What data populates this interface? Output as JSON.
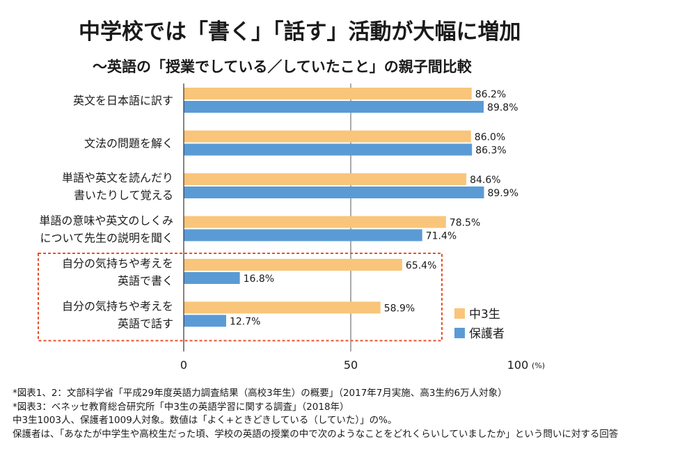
{
  "title": "中学校では「書く」「話す」活動が大幅に増加",
  "subtitle": "～英語の「授業でしている／していたこと」の親子間比較",
  "chart_data": {
    "type": "bar",
    "orientation": "horizontal",
    "categories": [
      [
        "英文を日本語に訳す"
      ],
      [
        "文法の問題を解く"
      ],
      [
        "単語や英文を読んだり",
        "書いたりして覚える"
      ],
      [
        "単語の意味や英文のしくみ",
        "について先生の説明を聞く"
      ],
      [
        "自分の気持ちや考えを",
        "英語で書く"
      ],
      [
        "自分の気持ちや考えを",
        "英語で話す"
      ]
    ],
    "series": [
      {
        "name": "中3生",
        "color": "#F9C57A",
        "values": [
          86.2,
          86.0,
          84.6,
          78.5,
          65.4,
          58.9
        ],
        "labels": [
          "86.2%",
          "86.0%",
          "84.6%",
          "78.5%",
          "65.4%",
          "58.9%"
        ]
      },
      {
        "name": "保護者",
        "color": "#5A9BD5",
        "values": [
          89.8,
          86.3,
          89.9,
          71.4,
          16.8,
          12.7
        ],
        "labels": [
          "89.8%",
          "86.3%",
          "89.9%",
          "71.4%",
          "16.8%",
          "12.7%"
        ]
      }
    ],
    "xlim": [
      0,
      100
    ],
    "xticks": [
      "0",
      "50",
      "100"
    ],
    "x_unit": "(%)",
    "highlight_categories": [
      4,
      5
    ],
    "highlight_color": "#E8502A",
    "legend_position": "right"
  },
  "notes": [
    "*図表1、2：文部科学省「平成29年度英語力調査結果（高校3年生）の概要」（2017年7月実施、高3生約6万人対象）",
    "*図表3：ベネッセ教育総合研究所「中3生の英語学習に関する調査」（2018年）",
    "中3生1003人、保護者1009人対象。数値は「よく+ときどきしている（していた）」の%。",
    "保護者は、「あなたが中学生や高校生だった頃、学校の英語の授業の中で次のようなことをどれくらいしていましたか」という問いに対する回答"
  ]
}
